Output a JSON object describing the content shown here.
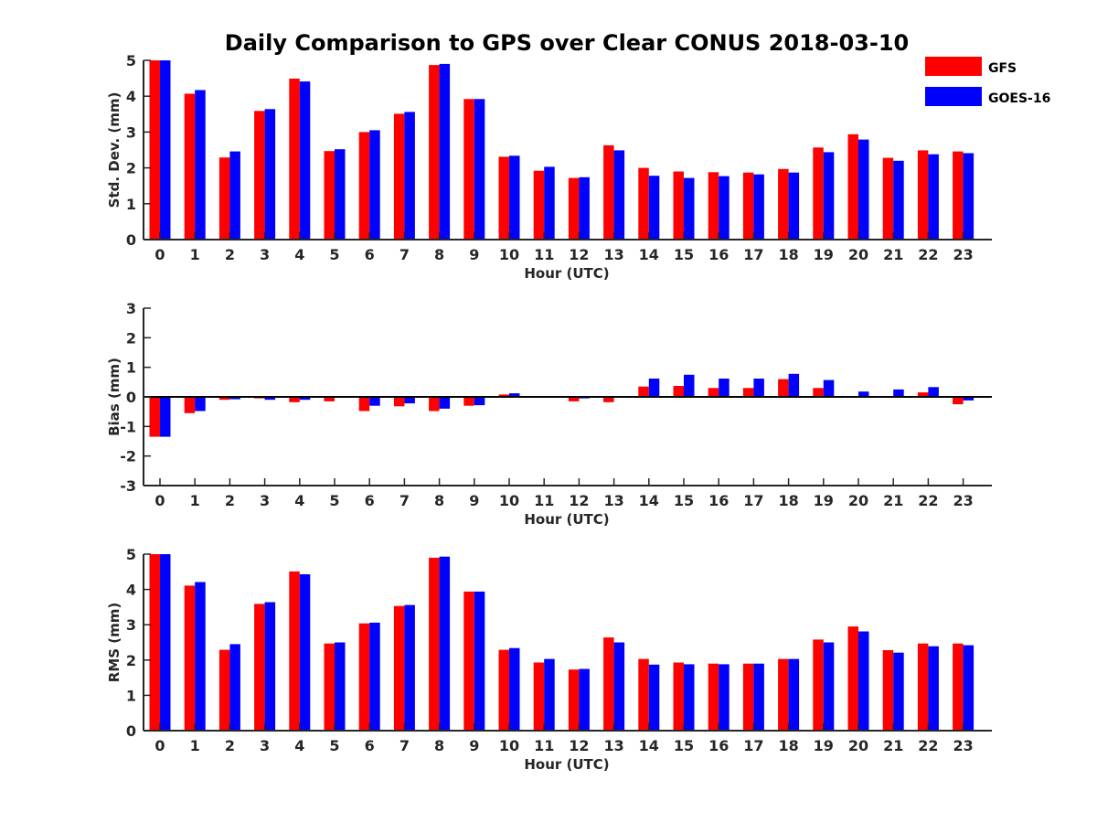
{
  "chart_data": {
    "type": "bar",
    "title": "Daily Comparison to GPS over Clear CONUS 2018-03-10",
    "legend": {
      "placement": "top-right",
      "entries": [
        {
          "name": "GFS",
          "color": "#ff0000"
        },
        {
          "name": "GOES-16",
          "color": "#0000ff"
        }
      ]
    },
    "categories": [
      "0",
      "1",
      "2",
      "3",
      "4",
      "5",
      "6",
      "7",
      "8",
      "9",
      "10",
      "11",
      "12",
      "13",
      "14",
      "15",
      "16",
      "17",
      "18",
      "19",
      "20",
      "21",
      "22",
      "23"
    ],
    "panels": [
      {
        "id": "stddev",
        "ylabel": "Std. Dev. (mm)",
        "xlabel": "Hour (UTC)",
        "ylim": [
          0,
          5
        ],
        "yticks": [
          "0",
          "1",
          "2",
          "3",
          "4",
          "5"
        ],
        "series": [
          {
            "name": "GFS",
            "values": [
              5.0,
              4.07,
              2.29,
              3.59,
              4.49,
              2.47,
              3.0,
              3.51,
              4.87,
              3.92,
              2.31,
              1.92,
              1.72,
              2.63,
              2.0,
              1.9,
              1.88,
              1.87,
              1.97,
              2.57,
              2.94,
              2.28,
              2.49,
              2.46
            ]
          },
          {
            "name": "GOES-16",
            "values": [
              5.0,
              4.17,
              2.46,
              3.64,
              4.41,
              2.52,
              3.05,
              3.56,
              4.9,
              3.92,
              2.34,
              2.03,
              1.74,
              2.49,
              1.78,
              1.72,
              1.77,
              1.82,
              1.87,
              2.44,
              2.79,
              2.2,
              2.38,
              2.41
            ]
          }
        ]
      },
      {
        "id": "bias",
        "ylabel": "Bias (mm)",
        "xlabel": "Hour (UTC)",
        "ylim": [
          -3,
          3
        ],
        "yticks": [
          "-3",
          "-2",
          "-1",
          "0",
          "1",
          "2",
          "3"
        ],
        "series": [
          {
            "name": "GFS",
            "values": [
              -1.35,
              -0.55,
              -0.1,
              -0.05,
              -0.18,
              -0.15,
              -0.48,
              -0.32,
              -0.48,
              -0.3,
              0.08,
              0.0,
              -0.15,
              -0.18,
              0.35,
              0.37,
              0.3,
              0.3,
              0.6,
              0.3,
              0.0,
              0.0,
              0.15,
              -0.25
            ]
          },
          {
            "name": "GOES-16",
            "values": [
              -1.35,
              -0.48,
              -0.08,
              -0.1,
              -0.1,
              0.0,
              -0.3,
              -0.22,
              -0.4,
              -0.28,
              0.12,
              0.03,
              -0.05,
              0.0,
              0.62,
              0.75,
              0.62,
              0.62,
              0.78,
              0.57,
              0.18,
              0.25,
              0.33,
              -0.12
            ]
          }
        ]
      },
      {
        "id": "rms",
        "ylabel": "RMS (mm)",
        "xlabel": "Hour (UTC)",
        "ylim": [
          0,
          5
        ],
        "yticks": [
          "0",
          "1",
          "2",
          "3",
          "4",
          "5"
        ],
        "series": [
          {
            "name": "GFS",
            "values": [
              5.0,
              4.11,
              2.29,
              3.59,
              4.51,
              2.47,
              3.04,
              3.53,
              4.9,
              3.94,
              2.29,
              1.93,
              1.73,
              2.64,
              2.03,
              1.93,
              1.9,
              1.9,
              2.03,
              2.58,
              2.95,
              2.28,
              2.47,
              2.47
            ]
          },
          {
            "name": "GOES-16",
            "values": [
              5.0,
              4.21,
              2.45,
              3.64,
              4.43,
              2.5,
              3.06,
              3.56,
              4.93,
              3.94,
              2.34,
              2.03,
              1.75,
              2.5,
              1.87,
              1.88,
              1.88,
              1.9,
              2.03,
              2.5,
              2.81,
              2.21,
              2.39,
              2.42
            ]
          }
        ]
      }
    ]
  }
}
